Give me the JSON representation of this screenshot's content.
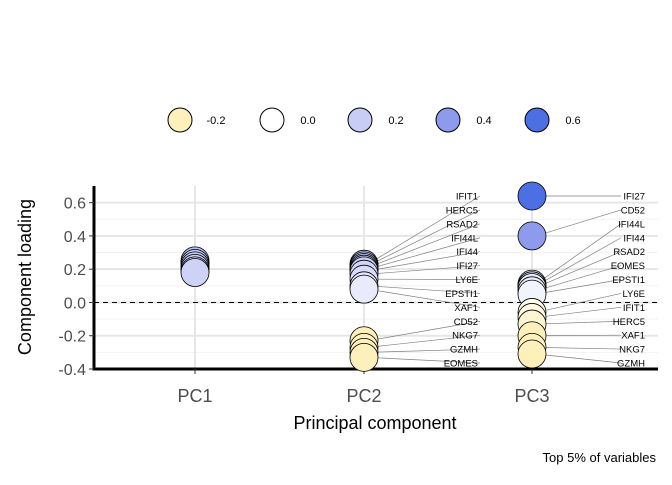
{
  "chart_data": {
    "type": "scatter",
    "xlabel": "Principal component",
    "ylabel": "Component loading",
    "caption": "Top 5% of variables",
    "categories": [
      "PC1",
      "PC2",
      "PC3"
    ],
    "ylim": [
      -0.4,
      0.7
    ],
    "yticks": [
      -0.4,
      -0.2,
      0.0,
      0.2,
      0.4,
      0.6
    ],
    "ytick_labels": [
      "-0.4",
      "-0.2",
      "0.0",
      "0.2",
      "0.4",
      "0.6"
    ],
    "reference_line": 0.0,
    "legend": {
      "placement": "top",
      "entries": [
        {
          "label": "-0.2",
          "value": -0.2,
          "color": "#fdf0bb"
        },
        {
          "label": "0.0",
          "value": 0.0,
          "color": "#ffffff"
        },
        {
          "label": "0.2",
          "value": 0.2,
          "color": "#c8cdf6"
        },
        {
          "label": "0.4",
          "value": 0.4,
          "color": "#8e9bec"
        },
        {
          "label": "0.6",
          "value": 0.6,
          "color": "#4d6fe4"
        }
      ]
    },
    "series": [
      {
        "component": "PC1",
        "points": [
          {
            "label": "",
            "value": 0.25
          },
          {
            "label": "",
            "value": 0.235
          },
          {
            "label": "",
            "value": 0.22
          },
          {
            "label": "",
            "value": 0.205
          },
          {
            "label": "",
            "value": 0.19
          },
          {
            "label": "",
            "value": 0.18
          }
        ]
      },
      {
        "component": "PC2",
        "points": [
          {
            "label": "IFIT1",
            "value": 0.23
          },
          {
            "label": "HERC5",
            "value": 0.22
          },
          {
            "label": "RSAD2",
            "value": 0.21
          },
          {
            "label": "IFI44L",
            "value": 0.2
          },
          {
            "label": "IFI44",
            "value": 0.19
          },
          {
            "label": "IFI27",
            "value": 0.17
          },
          {
            "label": "LY6E",
            "value": 0.14
          },
          {
            "label": "EPSTI1",
            "value": 0.1
          },
          {
            "label": "XAF1",
            "value": 0.08
          },
          {
            "label": "CD52",
            "value": -0.23
          },
          {
            "label": "NKG7",
            "value": -0.27
          },
          {
            "label": "GZMH",
            "value": -0.3
          },
          {
            "label": "EOMES",
            "value": -0.33
          }
        ]
      },
      {
        "component": "PC3",
        "points": [
          {
            "label": "IFI27",
            "value": 0.64
          },
          {
            "label": "CD52",
            "value": 0.4
          },
          {
            "label": "IFI44L",
            "value": 0.11
          },
          {
            "label": "IFI44",
            "value": 0.1
          },
          {
            "label": "RSAD2",
            "value": 0.09
          },
          {
            "label": "EOMES",
            "value": 0.07
          },
          {
            "label": "EPSTI1",
            "value": 0.05
          },
          {
            "label": "LY6E",
            "value": -0.06
          },
          {
            "label": "IFIT1",
            "value": -0.09
          },
          {
            "label": "HERC5",
            "value": -0.13
          },
          {
            "label": "XAF1",
            "value": -0.2
          },
          {
            "label": "NKG7",
            "value": -0.27
          },
          {
            "label": "GZMH",
            "value": -0.31
          }
        ]
      }
    ]
  }
}
